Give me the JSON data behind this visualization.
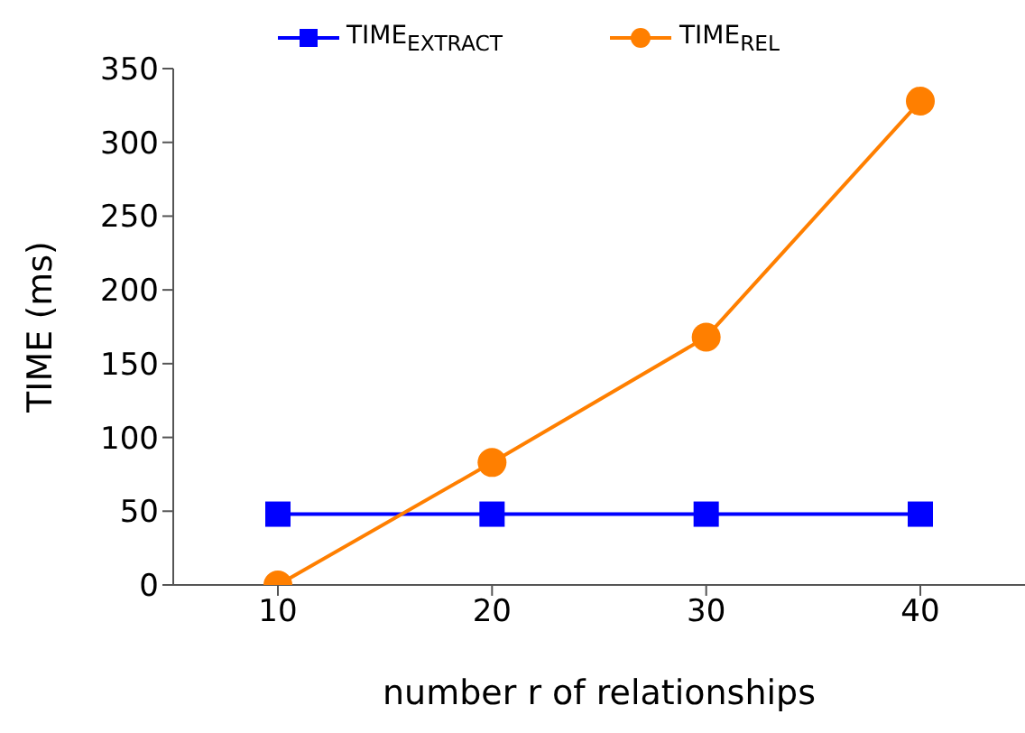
{
  "chart_data": {
    "type": "line",
    "categories": [
      "10",
      "20",
      "30",
      "40"
    ],
    "xlabel": "number r of relationships",
    "ylabel": "TIME (ms)",
    "ylim": [
      0,
      350
    ],
    "yticks": [
      0,
      50,
      100,
      150,
      200,
      250,
      300,
      350
    ],
    "grid": false,
    "legend": "top",
    "series": [
      {
        "name": "TIME$_{EXTRACT}$",
        "color": "#0000ff",
        "marker": "square",
        "values": [
          48,
          48,
          48,
          48
        ]
      },
      {
        "name": "TIME$_{REL}$",
        "color": "#ff7f00",
        "marker": "circle",
        "values": [
          0,
          83,
          168,
          328
        ]
      }
    ]
  }
}
